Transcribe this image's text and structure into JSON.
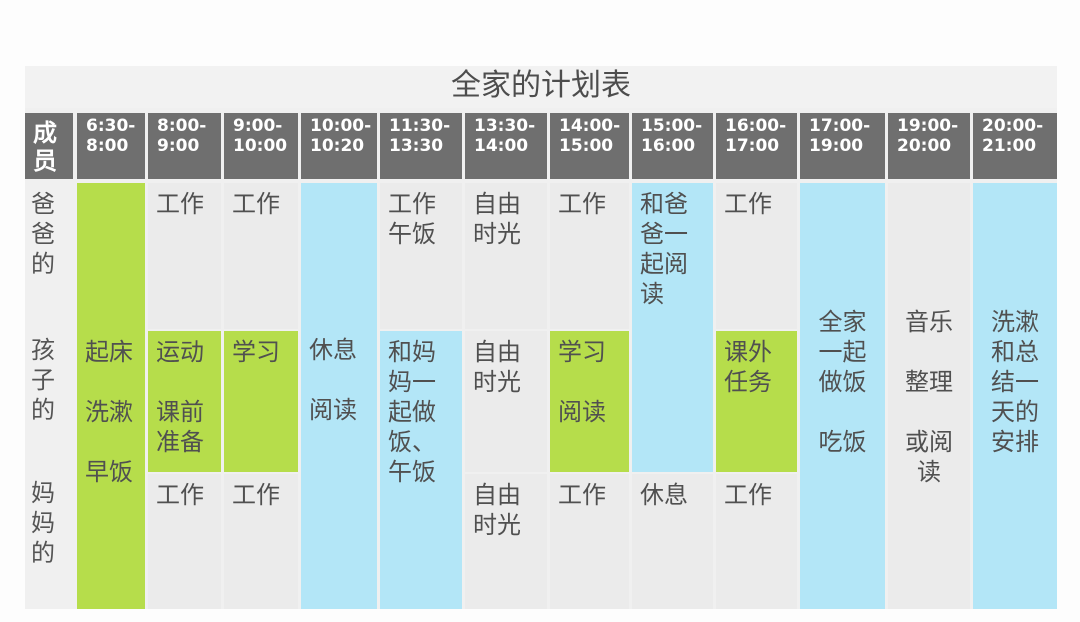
{
  "title": "全家的计划表",
  "header": {
    "member": "成\n员",
    "slots": [
      "6:30-\n8:00",
      "8:00-\n9:00",
      "9:00-\n10:00",
      "10:00-\n10:20",
      "11:30-\n13:30",
      "13:30-\n14:00",
      "14:00-\n15:00",
      "15:00-\n16:00",
      "16:00-\n17:00",
      "17:00-\n19:00",
      "19:00-\n20:00",
      "20:00-\n21:00"
    ]
  },
  "rows": {
    "dad": "爸\n爸\n的",
    "child": "孩\n子\n的",
    "mom": "妈\n妈\n的"
  },
  "cells": {
    "wake": "起床\n\n洗漱\n\n早饭",
    "dad_0800": "工作",
    "dad_0900": "工作",
    "rest_read": "休息\n\n阅读",
    "dad_1130": "工作\n午饭",
    "dad_1330": "自由\n时光",
    "dad_1400": "工作",
    "read_with_dad": "和爸\n爸一\n起阅\n读",
    "dad_1600": "工作",
    "family_cook": "全家\n一起\n做饭\n\n吃饭",
    "music": "音乐\n\n整理\n\n或阅\n读",
    "wash_summary": "洗漱\n和总\n结一\n天的\n安排",
    "child_0800": "运动\n\n课前\n准备",
    "child_0900": "学习",
    "cook_with_mom": "和妈\n妈一\n起做\n饭、\n午饭",
    "child_1330": "自由\n时光",
    "child_1400": "学习\n\n阅读",
    "child_1600": "课外\n任务",
    "mom_0800": "工作",
    "mom_0900": "工作",
    "mom_1330": "自由\n时光",
    "mom_1400": "工作",
    "mom_1500": "休息",
    "mom_1600": "工作"
  },
  "colors": {
    "header": "#6f6f6f",
    "green": "#b6dd4b",
    "blue": "#b3e6f7",
    "cell_gray": "#ebebeb"
  }
}
